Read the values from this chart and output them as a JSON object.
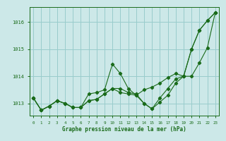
{
  "title": "Graphe pression niveau de la mer (hPa)",
  "bg_color": "#cce8e8",
  "grid_color": "#99cccc",
  "line_color": "#1a6b1a",
  "xlim": [
    -0.5,
    23.5
  ],
  "ylim": [
    1012.55,
    1016.55
  ],
  "yticks": [
    1013,
    1014,
    1015,
    1016
  ],
  "xticks": [
    0,
    1,
    2,
    3,
    4,
    5,
    6,
    7,
    8,
    9,
    10,
    11,
    12,
    13,
    14,
    15,
    16,
    17,
    18,
    19,
    20,
    21,
    22,
    23
  ],
  "series": [
    [
      1013.2,
      1012.75,
      1012.9,
      1013.1,
      1013.0,
      1012.85,
      1012.85,
      1013.35,
      1013.4,
      1013.5,
      1014.45,
      1014.1,
      1013.55,
      1013.3,
      1013.0,
      1012.8,
      1013.05,
      1013.3,
      1013.75,
      1014.0,
      1015.0,
      1015.7,
      1016.05,
      1016.35
    ],
    [
      1013.2,
      1012.75,
      1012.9,
      1013.1,
      1013.0,
      1012.85,
      1012.85,
      1013.1,
      1013.15,
      1013.35,
      1013.55,
      1013.55,
      1013.4,
      1013.35,
      1013.0,
      1012.8,
      1013.2,
      1013.55,
      1013.9,
      1014.0,
      1014.0,
      1014.5,
      1015.05,
      1016.35
    ],
    [
      1013.2,
      1012.75,
      1012.9,
      1013.1,
      1013.0,
      1012.85,
      1012.85,
      1013.1,
      1013.15,
      1013.35,
      1013.55,
      1013.4,
      1013.35,
      1013.3,
      1013.5,
      1013.6,
      1013.75,
      1013.95,
      1014.1,
      1014.0,
      1015.0,
      1015.7,
      1016.05,
      1016.35
    ]
  ]
}
